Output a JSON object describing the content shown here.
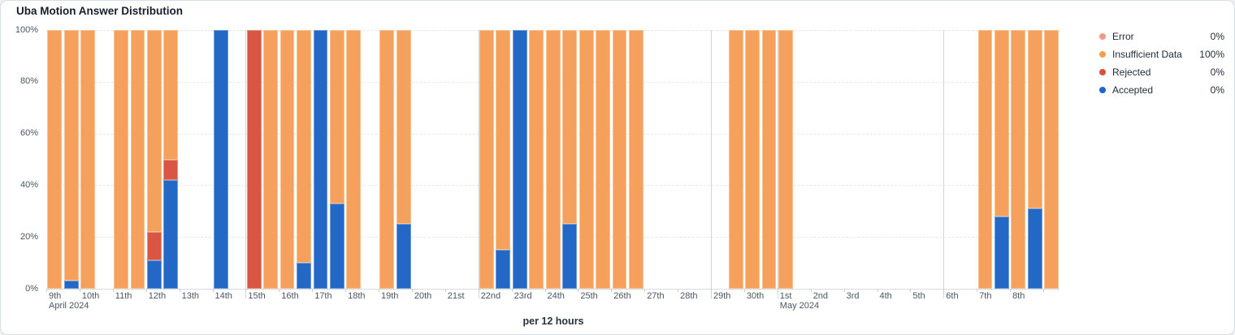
{
  "title": "Uba Motion Answer Distribution",
  "x_axis_title": "per 12 hours",
  "legend": [
    {
      "name": "Error",
      "value": "0%",
      "color": "#ED9C8C"
    },
    {
      "name": "Insufficient Data",
      "value": "100%",
      "color": "#F5A04F"
    },
    {
      "name": "Rejected",
      "value": "0%",
      "color": "#D8513F"
    },
    {
      "name": "Accepted",
      "value": "0%",
      "color": "#2166C5"
    }
  ],
  "chart_data": {
    "type": "bar",
    "stacked": true,
    "unit": "percent",
    "bin_hours": 12,
    "title": "Uba Motion Answer Distribution",
    "xlabel": "per 12 hours",
    "ylim": [
      0,
      100
    ],
    "y_ticks": [
      "0%",
      "20%",
      "40%",
      "60%",
      "80%",
      "100%"
    ],
    "grid": "horizontal-dashed",
    "legend_position": "right",
    "stack_order_bottom_up": [
      "accepted",
      "rejected",
      "insufficient_data",
      "error"
    ],
    "series_colors": {
      "accepted": "#2368C4",
      "rejected": "#D95643",
      "insufficient_data": "#F5A15D",
      "error": "#ED9C8C"
    },
    "x_ticks": [
      {
        "slot": 0,
        "label": "9th",
        "sublabel": "April 2024"
      },
      {
        "slot": 2,
        "label": "10th"
      },
      {
        "slot": 4,
        "label": "11th"
      },
      {
        "slot": 6,
        "label": "12th"
      },
      {
        "slot": 8,
        "label": "13th"
      },
      {
        "slot": 10,
        "label": "14th"
      },
      {
        "slot": 12,
        "label": "15th"
      },
      {
        "slot": 14,
        "label": "16th"
      },
      {
        "slot": 16,
        "label": "17th"
      },
      {
        "slot": 18,
        "label": "18th"
      },
      {
        "slot": 20,
        "label": "19th"
      },
      {
        "slot": 22,
        "label": "20th"
      },
      {
        "slot": 24,
        "label": "21st"
      },
      {
        "slot": 26,
        "label": "22nd"
      },
      {
        "slot": 28,
        "label": "23rd"
      },
      {
        "slot": 30,
        "label": "24th"
      },
      {
        "slot": 32,
        "label": "25th"
      },
      {
        "slot": 34,
        "label": "26th"
      },
      {
        "slot": 36,
        "label": "27th"
      },
      {
        "slot": 38,
        "label": "28th"
      },
      {
        "slot": 40,
        "label": "29th"
      },
      {
        "slot": 42,
        "label": "30th"
      },
      {
        "slot": 44,
        "label": "1st",
        "sublabel": "May 2024"
      },
      {
        "slot": 46,
        "label": "2nd"
      },
      {
        "slot": 48,
        "label": "3rd"
      },
      {
        "slot": 50,
        "label": "4th"
      },
      {
        "slot": 52,
        "label": "5th"
      },
      {
        "slot": 54,
        "label": "6th"
      },
      {
        "slot": 56,
        "label": "7th"
      },
      {
        "slot": 58,
        "label": "8th"
      },
      {
        "slot": 60,
        "label": ""
      }
    ],
    "separator_slots": [
      12,
      26,
      40,
      44,
      54
    ],
    "bars": [
      {
        "slot": 0,
        "time": "Apr 9 00:00-12:00",
        "accepted": 0,
        "rejected": 0,
        "insufficient_data": 100,
        "error": 0
      },
      {
        "slot": 1,
        "time": "Apr 9 12:00-24:00",
        "accepted": 3,
        "rejected": 0,
        "insufficient_data": 97,
        "error": 0
      },
      {
        "slot": 2,
        "time": "Apr 10 00:00-12:00",
        "accepted": 0,
        "rejected": 0,
        "insufficient_data": 100,
        "error": 0
      },
      {
        "slot": 4,
        "time": "Apr 11 00:00-12:00",
        "accepted": 0,
        "rejected": 0,
        "insufficient_data": 100,
        "error": 0
      },
      {
        "slot": 5,
        "time": "Apr 11 12:00-24:00",
        "accepted": 0,
        "rejected": 0,
        "insufficient_data": 100,
        "error": 0
      },
      {
        "slot": 6,
        "time": "Apr 12 00:00-12:00",
        "accepted": 11,
        "rejected": 11,
        "insufficient_data": 78,
        "error": 0
      },
      {
        "slot": 7,
        "time": "Apr 12 12:00-24:00",
        "accepted": 42,
        "rejected": 8,
        "insufficient_data": 50,
        "error": 0
      },
      {
        "slot": 10,
        "time": "Apr 14 00:00-12:00",
        "accepted": 100,
        "rejected": 0,
        "insufficient_data": 0,
        "error": 0
      },
      {
        "slot": 12,
        "time": "Apr 15 00:00-12:00",
        "accepted": 0,
        "rejected": 100,
        "insufficient_data": 0,
        "error": 0
      },
      {
        "slot": 13,
        "time": "Apr 15 12:00-24:00",
        "accepted": 0,
        "rejected": 0,
        "insufficient_data": 100,
        "error": 0
      },
      {
        "slot": 14,
        "time": "Apr 16 00:00-12:00",
        "accepted": 0,
        "rejected": 0,
        "insufficient_data": 100,
        "error": 0
      },
      {
        "slot": 15,
        "time": "Apr 16 12:00-24:00",
        "accepted": 10,
        "rejected": 0,
        "insufficient_data": 90,
        "error": 0
      },
      {
        "slot": 16,
        "time": "Apr 17 00:00-12:00",
        "accepted": 100,
        "rejected": 0,
        "insufficient_data": 0,
        "error": 0
      },
      {
        "slot": 17,
        "time": "Apr 17 12:00-24:00",
        "accepted": 33,
        "rejected": 0,
        "insufficient_data": 67,
        "error": 0
      },
      {
        "slot": 18,
        "time": "Apr 18 00:00-12:00",
        "accepted": 0,
        "rejected": 0,
        "insufficient_data": 100,
        "error": 0
      },
      {
        "slot": 20,
        "time": "Apr 19 00:00-12:00",
        "accepted": 0,
        "rejected": 0,
        "insufficient_data": 100,
        "error": 0
      },
      {
        "slot": 21,
        "time": "Apr 19 12:00-24:00",
        "accepted": 25,
        "rejected": 0,
        "insufficient_data": 75,
        "error": 0
      },
      {
        "slot": 26,
        "time": "Apr 22 00:00-12:00",
        "accepted": 0,
        "rejected": 0,
        "insufficient_data": 100,
        "error": 0
      },
      {
        "slot": 27,
        "time": "Apr 22 12:00-24:00",
        "accepted": 15,
        "rejected": 0,
        "insufficient_data": 85,
        "error": 0
      },
      {
        "slot": 28,
        "time": "Apr 23 00:00-12:00",
        "accepted": 100,
        "rejected": 0,
        "insufficient_data": 0,
        "error": 0
      },
      {
        "slot": 29,
        "time": "Apr 23 12:00-24:00",
        "accepted": 0,
        "rejected": 0,
        "insufficient_data": 100,
        "error": 0
      },
      {
        "slot": 30,
        "time": "Apr 24 00:00-12:00",
        "accepted": 0,
        "rejected": 0,
        "insufficient_data": 100,
        "error": 0
      },
      {
        "slot": 31,
        "time": "Apr 24 12:00-24:00",
        "accepted": 25,
        "rejected": 0,
        "insufficient_data": 75,
        "error": 0
      },
      {
        "slot": 32,
        "time": "Apr 25 00:00-12:00",
        "accepted": 0,
        "rejected": 0,
        "insufficient_data": 100,
        "error": 0
      },
      {
        "slot": 33,
        "time": "Apr 25 12:00-24:00",
        "accepted": 0,
        "rejected": 0,
        "insufficient_data": 100,
        "error": 0
      },
      {
        "slot": 34,
        "time": "Apr 26 00:00-12:00",
        "accepted": 0,
        "rejected": 0,
        "insufficient_data": 100,
        "error": 0
      },
      {
        "slot": 35,
        "time": "Apr 26 12:00-24:00",
        "accepted": 0,
        "rejected": 0,
        "insufficient_data": 100,
        "error": 0
      },
      {
        "slot": 41,
        "time": "Apr 29 12:00-24:00",
        "accepted": 0,
        "rejected": 0,
        "insufficient_data": 100,
        "error": 0
      },
      {
        "slot": 42,
        "time": "Apr 30 00:00-12:00",
        "accepted": 0,
        "rejected": 0,
        "insufficient_data": 100,
        "error": 0
      },
      {
        "slot": 43,
        "time": "Apr 30 12:00-24:00",
        "accepted": 0,
        "rejected": 0,
        "insufficient_data": 100,
        "error": 0
      },
      {
        "slot": 44,
        "time": "May 1 00:00-12:00",
        "accepted": 0,
        "rejected": 0,
        "insufficient_data": 100,
        "error": 0
      },
      {
        "slot": 56,
        "time": "May 7 00:00-12:00",
        "accepted": 0,
        "rejected": 0,
        "insufficient_data": 100,
        "error": 0
      },
      {
        "slot": 57,
        "time": "May 7 12:00-24:00",
        "accepted": 28,
        "rejected": 0,
        "insufficient_data": 72,
        "error": 0
      },
      {
        "slot": 58,
        "time": "May 8 00:00-12:00",
        "accepted": 0,
        "rejected": 0,
        "insufficient_data": 100,
        "error": 0
      },
      {
        "slot": 59,
        "time": "May 8 12:00-24:00",
        "accepted": 31,
        "rejected": 0,
        "insufficient_data": 69,
        "error": 0
      },
      {
        "slot": 60,
        "time": "May 9 00:00-12:00",
        "accepted": 0,
        "rejected": 0,
        "insufficient_data": 100,
        "error": 0
      }
    ]
  }
}
